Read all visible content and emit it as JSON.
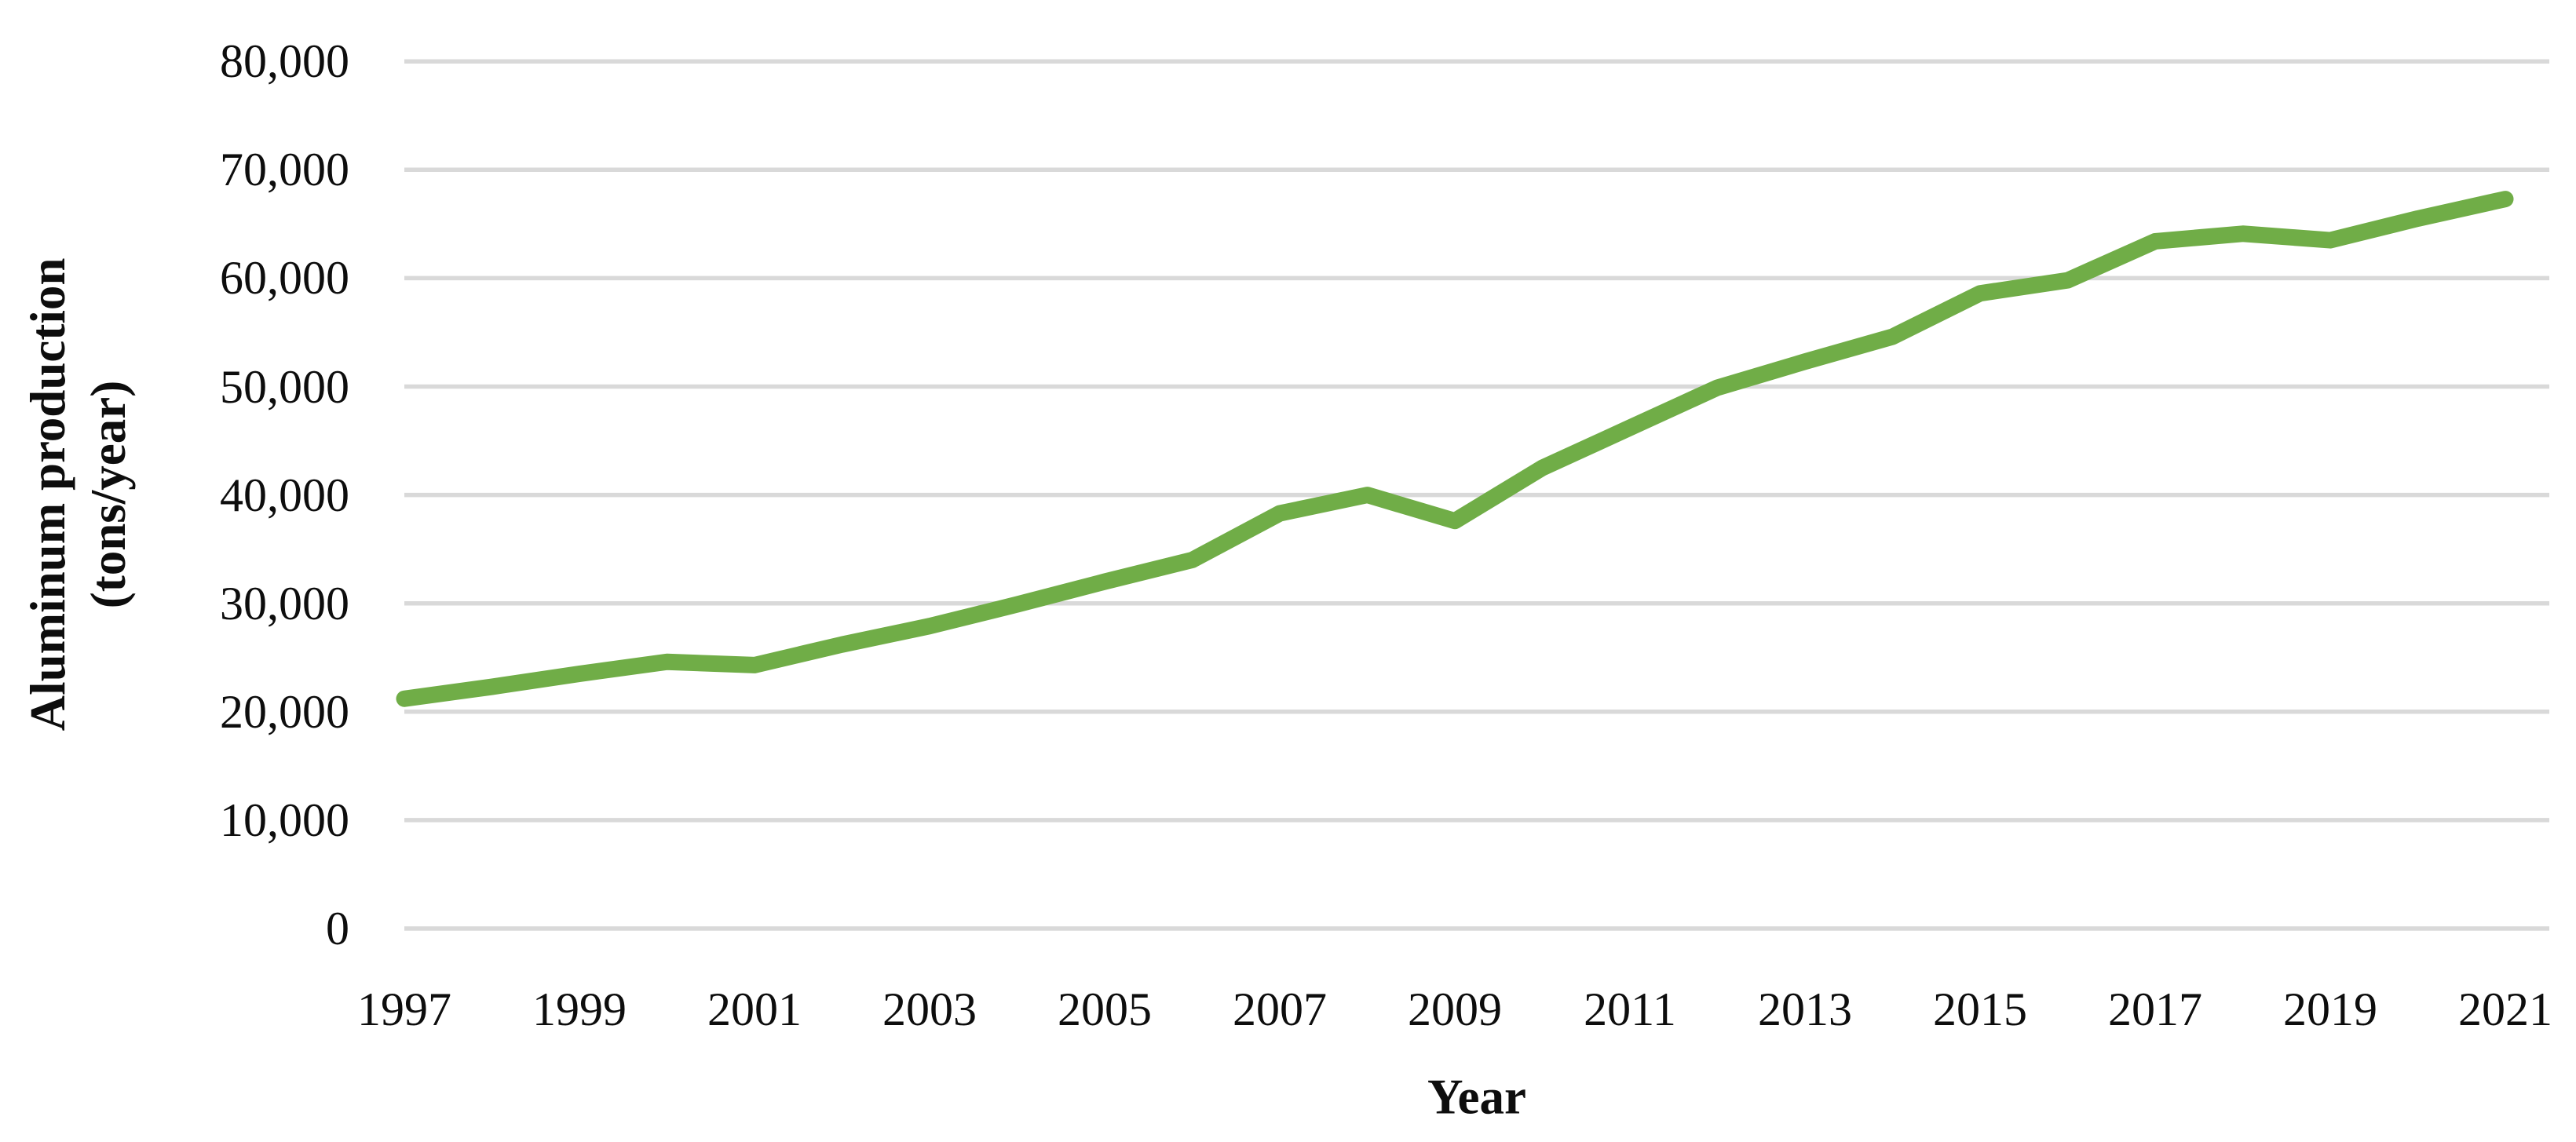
{
  "chart_data": {
    "type": "line",
    "title": "",
    "xlabel": "Year",
    "ylabel_line1": "Aluminum production",
    "ylabel_line2": "(tons/year)",
    "x": [
      1997,
      1998,
      1999,
      2000,
      2001,
      2002,
      2003,
      2004,
      2005,
      2006,
      2007,
      2008,
      2009,
      2010,
      2011,
      2012,
      2013,
      2014,
      2015,
      2016,
      2017,
      2018,
      2019,
      2020,
      2021
    ],
    "series": [
      {
        "name": "Aluminum production",
        "color": "#70AD47",
        "values": [
          21200,
          22300,
          23500,
          24600,
          24300,
          26200,
          27900,
          29900,
          32000,
          34000,
          38300,
          40000,
          37600,
          42500,
          46200,
          49900,
          52300,
          54600,
          58600,
          59800,
          63400,
          64100,
          63500,
          65500,
          67300
        ]
      }
    ],
    "ylim": [
      0,
      80000
    ],
    "y_tick_values": [
      80000,
      70000,
      60000,
      50000,
      40000,
      30000,
      20000,
      10000,
      0
    ],
    "y_tick_labels": [
      "80,000",
      "70,000",
      "60,000",
      "50,000",
      "40,000",
      "30,000",
      "20,000",
      "10,000",
      "0"
    ],
    "x_tick_labels": [
      "1997",
      "1999",
      "2001",
      "2003",
      "2005",
      "2007",
      "2009",
      "2011",
      "2013",
      "2015",
      "2017",
      "2019",
      "2021"
    ],
    "grid": "horizontal",
    "gridline_color": "#D9D9D9",
    "legend": "none",
    "background_color": "#FFFFFF"
  }
}
